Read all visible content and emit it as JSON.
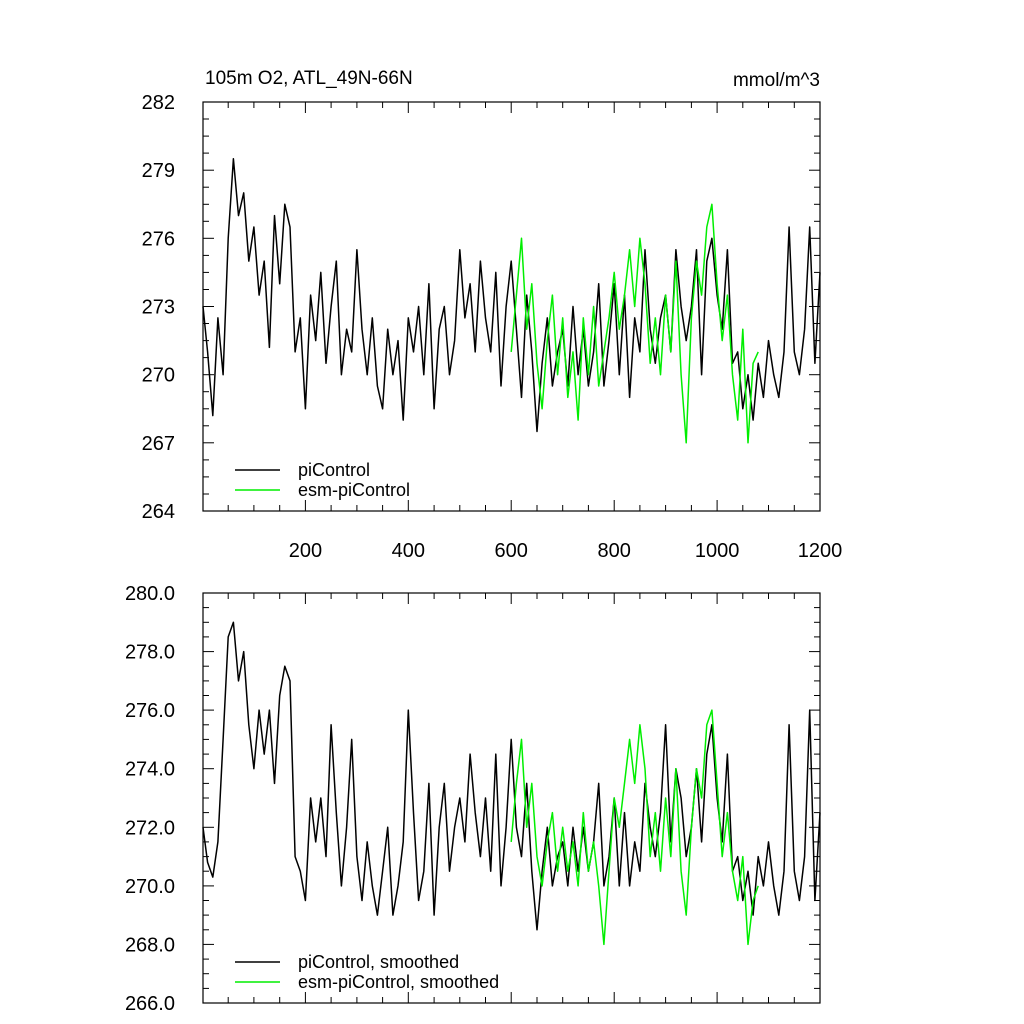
{
  "chart_data": [
    {
      "type": "line",
      "title": "105m O2, ATL_49N-66N",
      "units": "mmol/m^3",
      "xlabel": "",
      "ylabel": "",
      "xlim": [
        1,
        1200
      ],
      "ylim": [
        264,
        282
      ],
      "xticks": [
        200,
        400,
        600,
        800,
        1000,
        1200
      ],
      "xtick_labels": [
        "200",
        "400",
        "600",
        "800",
        "1000",
        "1200"
      ],
      "yticks": [
        264,
        267,
        270,
        273,
        276,
        279,
        282
      ],
      "ytick_labels": [
        "264",
        "267",
        "270",
        "273",
        "276",
        "279",
        "282"
      ],
      "legend_position": "bottom-left",
      "series": [
        {
          "name": "piControl",
          "color": "#000000",
          "x": [
            1,
            10,
            20,
            30,
            40,
            50,
            60,
            70,
            80,
            90,
            100,
            110,
            120,
            130,
            140,
            150,
            160,
            170,
            180,
            190,
            200,
            210,
            220,
            230,
            240,
            250,
            260,
            270,
            280,
            290,
            300,
            310,
            320,
            330,
            340,
            350,
            360,
            370,
            380,
            390,
            400,
            410,
            420,
            430,
            440,
            450,
            460,
            470,
            480,
            490,
            500,
            510,
            520,
            530,
            540,
            550,
            560,
            570,
            580,
            590,
            600,
            610,
            620,
            630,
            640,
            650,
            660,
            670,
            680,
            690,
            700,
            710,
            720,
            730,
            740,
            750,
            760,
            770,
            780,
            790,
            800,
            810,
            820,
            830,
            840,
            850,
            860,
            870,
            880,
            890,
            900,
            910,
            920,
            930,
            940,
            950,
            960,
            970,
            980,
            990,
            1000,
            1010,
            1020,
            1030,
            1040,
            1050,
            1060,
            1070,
            1080,
            1090,
            1100,
            1110,
            1120,
            1130,
            1140,
            1150,
            1160,
            1170,
            1180,
            1190,
            1200
          ],
          "values": [
            273.0,
            271.0,
            268.2,
            272.5,
            270.0,
            276.0,
            279.5,
            277.0,
            278.0,
            275.0,
            276.5,
            273.5,
            275.0,
            271.2,
            277.0,
            274.0,
            277.5,
            276.5,
            271.0,
            272.5,
            268.5,
            273.5,
            271.5,
            274.5,
            270.5,
            273.0,
            275.0,
            270.0,
            272.0,
            271.0,
            275.5,
            272.0,
            270.0,
            272.5,
            269.5,
            268.5,
            272.0,
            270.0,
            271.5,
            268.0,
            272.5,
            271.0,
            273.0,
            270.0,
            274.0,
            268.5,
            272.0,
            273.0,
            270.0,
            271.5,
            275.5,
            272.5,
            274.0,
            271.0,
            275.0,
            272.5,
            271.0,
            274.5,
            269.5,
            273.0,
            275.0,
            272.0,
            269.0,
            273.5,
            271.0,
            267.5,
            270.5,
            272.5,
            269.5,
            271.0,
            272.0,
            269.5,
            273.0,
            270.0,
            272.0,
            269.5,
            271.0,
            274.0,
            269.5,
            271.5,
            274.0,
            270.0,
            273.5,
            269.0,
            272.5,
            271.0,
            275.5,
            272.0,
            270.5,
            272.5,
            273.5,
            271.0,
            275.5,
            273.0,
            271.5,
            273.0,
            275.5,
            270.0,
            275.0,
            276.0,
            273.5,
            272.0,
            275.5,
            270.5,
            271.0,
            268.5,
            270.0,
            268.0,
            270.5,
            269.0,
            271.5,
            270.0,
            269.0,
            271.0,
            276.5,
            271.0,
            270.0,
            272.0,
            276.5,
            270.5,
            274.5
          ]
        },
        {
          "name": "esm-piControl",
          "color": "#00ee00",
          "x": [
            600,
            610,
            620,
            630,
            640,
            650,
            660,
            670,
            680,
            690,
            700,
            710,
            720,
            730,
            740,
            750,
            760,
            770,
            780,
            790,
            800,
            810,
            820,
            830,
            840,
            850,
            860,
            870,
            880,
            890,
            900,
            910,
            920,
            930,
            940,
            950,
            960,
            970,
            980,
            990,
            1000,
            1010,
            1020,
            1030,
            1040,
            1050,
            1060,
            1070,
            1080
          ],
          "values": [
            271.0,
            273.5,
            276.0,
            272.0,
            274.0,
            270.5,
            268.5,
            271.5,
            273.5,
            270.0,
            272.5,
            269.0,
            271.0,
            268.0,
            272.5,
            270.0,
            273.0,
            269.5,
            271.0,
            272.5,
            274.5,
            272.0,
            273.5,
            275.5,
            273.0,
            276.0,
            274.0,
            270.5,
            272.5,
            270.0,
            273.5,
            271.0,
            275.0,
            270.0,
            267.0,
            272.5,
            275.0,
            273.5,
            276.5,
            277.5,
            274.0,
            271.5,
            273.5,
            270.0,
            268.0,
            272.0,
            267.0,
            270.5,
            271.0
          ]
        }
      ]
    },
    {
      "type": "line",
      "title": "",
      "xlabel": "",
      "ylabel": "",
      "xlim": [
        1,
        1200
      ],
      "ylim": [
        266,
        280
      ],
      "xticks": [
        200,
        400,
        600,
        800,
        1000,
        1200
      ],
      "yticks": [
        266,
        268,
        270,
        272,
        274,
        276,
        278,
        280
      ],
      "ytick_labels": [
        "266.0",
        "268.0",
        "270.0",
        "272.0",
        "274.0",
        "276.0",
        "278.0",
        "280.0"
      ],
      "legend_position": "bottom-left",
      "series": [
        {
          "name": "piControl, smoothed",
          "color": "#000000",
          "x": [
            1,
            10,
            20,
            30,
            40,
            50,
            60,
            70,
            80,
            90,
            100,
            110,
            120,
            130,
            140,
            150,
            160,
            170,
            180,
            190,
            200,
            210,
            220,
            230,
            240,
            250,
            260,
            270,
            280,
            290,
            300,
            310,
            320,
            330,
            340,
            350,
            360,
            370,
            380,
            390,
            400,
            410,
            420,
            430,
            440,
            450,
            460,
            470,
            480,
            490,
            500,
            510,
            520,
            530,
            540,
            550,
            560,
            570,
            580,
            590,
            600,
            610,
            620,
            630,
            640,
            650,
            660,
            670,
            680,
            690,
            700,
            710,
            720,
            730,
            740,
            750,
            760,
            770,
            780,
            790,
            800,
            810,
            820,
            830,
            840,
            850,
            860,
            870,
            880,
            890,
            900,
            910,
            920,
            930,
            940,
            950,
            960,
            970,
            980,
            990,
            1000,
            1010,
            1020,
            1030,
            1040,
            1050,
            1060,
            1070,
            1080,
            1090,
            1100,
            1110,
            1120,
            1130,
            1140,
            1150,
            1160,
            1170,
            1180,
            1190,
            1200
          ],
          "values": [
            272.0,
            270.8,
            270.3,
            271.5,
            275.0,
            278.5,
            279.0,
            277.0,
            278.0,
            275.5,
            274.0,
            276.0,
            274.5,
            276.0,
            273.5,
            276.5,
            277.5,
            277.0,
            271.0,
            270.5,
            269.5,
            273.0,
            271.5,
            273.0,
            271.0,
            275.5,
            272.5,
            270.0,
            272.0,
            275.0,
            271.0,
            269.5,
            271.5,
            270.0,
            269.0,
            270.5,
            272.0,
            269.0,
            270.0,
            271.5,
            276.0,
            272.5,
            269.5,
            270.5,
            273.5,
            269.0,
            272.0,
            273.5,
            270.5,
            272.0,
            273.0,
            271.5,
            274.5,
            272.5,
            271.0,
            273.0,
            270.5,
            274.5,
            270.0,
            272.0,
            275.0,
            272.0,
            271.0,
            273.5,
            270.5,
            268.5,
            270.5,
            272.0,
            270.0,
            271.0,
            271.5,
            270.0,
            272.0,
            270.5,
            272.0,
            270.5,
            271.5,
            273.5,
            270.0,
            271.0,
            273.0,
            270.0,
            272.5,
            270.0,
            271.5,
            270.5,
            273.5,
            272.0,
            271.0,
            272.5,
            275.5,
            271.5,
            274.0,
            273.0,
            271.0,
            272.0,
            274.0,
            271.5,
            274.5,
            275.5,
            273.0,
            271.5,
            274.5,
            270.5,
            271.0,
            269.5,
            270.5,
            269.0,
            271.0,
            270.0,
            271.5,
            270.0,
            269.0,
            270.5,
            275.5,
            270.5,
            269.5,
            271.0,
            276.0,
            269.5,
            272.5
          ]
        },
        {
          "name": "esm-piControl, smoothed",
          "color": "#00ee00",
          "x": [
            600,
            610,
            620,
            630,
            640,
            650,
            660,
            670,
            680,
            690,
            700,
            710,
            720,
            730,
            740,
            750,
            760,
            770,
            780,
            790,
            800,
            810,
            820,
            830,
            840,
            850,
            860,
            870,
            880,
            890,
            900,
            910,
            920,
            930,
            940,
            950,
            960,
            970,
            980,
            990,
            1000,
            1010,
            1020,
            1030,
            1040,
            1050,
            1060,
            1070,
            1080
          ],
          "values": [
            271.5,
            273.5,
            275.0,
            272.0,
            273.5,
            271.0,
            270.0,
            271.5,
            272.5,
            270.5,
            272.0,
            270.5,
            271.5,
            270.0,
            272.5,
            270.5,
            271.5,
            270.0,
            268.0,
            270.5,
            273.0,
            272.0,
            273.5,
            275.0,
            273.5,
            275.5,
            274.0,
            271.0,
            272.5,
            270.5,
            273.0,
            271.0,
            274.0,
            270.5,
            269.0,
            272.0,
            274.0,
            273.0,
            275.5,
            276.0,
            273.5,
            271.0,
            272.5,
            270.5,
            269.5,
            271.0,
            268.0,
            269.5,
            270.0
          ]
        }
      ]
    }
  ]
}
